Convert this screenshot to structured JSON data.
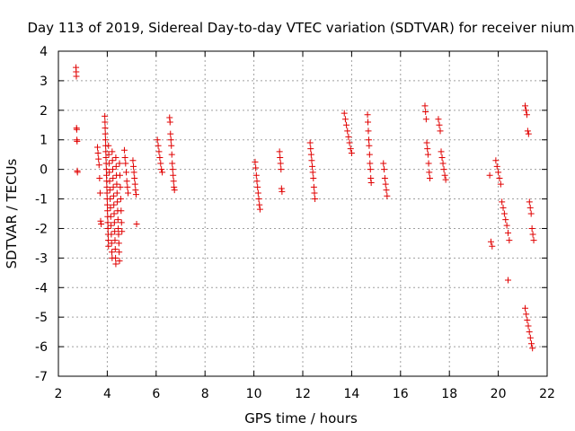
{
  "chart_data": {
    "type": "scatter",
    "title": "Day 113 of 2019, Sidereal Day-to-day VTEC variation (SDTVAR) for receiver nium",
    "xlabel": "GPS time / hours",
    "ylabel": "SDTVAR / TECUs",
    "xlim": [
      2,
      22
    ],
    "ylim": [
      -7,
      4
    ],
    "xticks": [
      2,
      4,
      6,
      8,
      10,
      12,
      14,
      16,
      18,
      20,
      22
    ],
    "yticks": [
      -7,
      -6,
      -5,
      -4,
      -3,
      -2,
      -1,
      0,
      1,
      2,
      3,
      4
    ],
    "grid": true,
    "marker": "plus",
    "color": "#e00000",
    "series": [
      {
        "name": "SDTVAR",
        "segments": [
          {
            "x0": 2.72,
            "x1": 2.78,
            "y": [
              3.45,
              3.3,
              3.15,
              1.4,
              1.35,
              1.0,
              0.95,
              -0.05,
              -0.1
            ]
          },
          {
            "x0": 3.6,
            "x1": 3.75,
            "y": [
              0.75,
              0.55,
              0.35,
              0.15,
              -0.3,
              -0.8,
              -1.75,
              -1.85
            ]
          },
          {
            "x0": 3.9,
            "x1": 4.05,
            "y": [
              1.8,
              1.6,
              1.4,
              1.2,
              1.0,
              0.8,
              0.6,
              0.4,
              0.2,
              0.0,
              -0.2,
              -0.4,
              -0.6,
              -0.8,
              -1.0,
              -1.2,
              -1.4,
              -1.6,
              -1.8,
              -2.0,
              -2.2,
              -2.4,
              -2.6
            ]
          },
          {
            "x0": 4.05,
            "x1": 4.2,
            "y": [
              0.8,
              0.5,
              0.2,
              -0.1,
              -0.4,
              -0.7,
              -1.0,
              -1.3,
              -1.6,
              -1.9,
              -2.2,
              -2.5,
              -2.8,
              -3.0
            ]
          },
          {
            "x0": 4.2,
            "x1": 4.35,
            "y": [
              0.6,
              0.3,
              0.0,
              -0.3,
              -0.6,
              -0.9,
              -1.2,
              -1.5,
              -1.8,
              -2.1,
              -2.4,
              -2.7,
              -3.0,
              -3.2
            ]
          },
          {
            "x0": 4.35,
            "x1": 4.5,
            "y": [
              0.4,
              0.1,
              -0.2,
              -0.5,
              -0.8,
              -1.1,
              -1.4,
              -1.7,
              -2.0,
              -2.2,
              -2.5,
              -2.8,
              -3.1
            ]
          },
          {
            "x0": 4.5,
            "x1": 4.6,
            "y": [
              0.2,
              -0.2,
              -0.6,
              -1.0,
              -1.4,
              -1.8,
              -2.1
            ]
          },
          {
            "x0": 4.7,
            "x1": 4.85,
            "y": [
              0.65,
              0.4,
              0.2,
              -0.1,
              -0.4,
              -0.6,
              -0.8
            ]
          },
          {
            "x0": 5.05,
            "x1": 5.2,
            "y": [
              0.3,
              0.1,
              -0.1,
              -0.3,
              -0.5,
              -0.7,
              -0.85,
              -1.85
            ]
          },
          {
            "x0": 6.05,
            "x1": 6.25,
            "y": [
              1.0,
              0.8,
              0.6,
              0.4,
              0.2,
              0.0,
              -0.1
            ]
          },
          {
            "x0": 6.55,
            "x1": 6.75,
            "y": [
              1.75,
              1.6,
              1.2,
              1.0,
              0.8,
              0.5,
              0.2,
              0.0,
              -0.2,
              -0.4,
              -0.6,
              -0.7
            ]
          },
          {
            "x0": 10.05,
            "x1": 10.25,
            "y": [
              0.25,
              0.05,
              -0.2,
              -0.4,
              -0.6,
              -0.8,
              -1.0,
              -1.2,
              -1.35
            ]
          },
          {
            "x0": 11.05,
            "x1": 11.15,
            "y": [
              0.6,
              0.4,
              0.2,
              0.0,
              -0.65,
              -0.75
            ]
          },
          {
            "x0": 12.3,
            "x1": 12.5,
            "y": [
              0.9,
              0.7,
              0.5,
              0.3,
              0.1,
              -0.1,
              -0.3,
              -0.6,
              -0.8,
              -1.0
            ]
          },
          {
            "x0": 13.7,
            "x1": 14.0,
            "y": [
              1.9,
              1.7,
              1.5,
              1.3,
              1.1,
              0.9,
              0.7,
              0.55
            ]
          },
          {
            "x0": 14.65,
            "x1": 14.8,
            "y": [
              1.85,
              1.6,
              1.3,
              1.0,
              0.8,
              0.5,
              0.2,
              0.0,
              -0.3,
              -0.45
            ]
          },
          {
            "x0": 15.3,
            "x1": 15.45,
            "y": [
              0.2,
              0.0,
              -0.3,
              -0.5,
              -0.7,
              -0.9
            ]
          },
          {
            "x0": 17.0,
            "x1": 17.2,
            "y": [
              2.15,
              1.95,
              1.7,
              0.9,
              0.7,
              0.5,
              0.2,
              -0.1,
              -0.3
            ]
          },
          {
            "x0": 17.55,
            "x1": 17.85,
            "y": [
              1.7,
              1.5,
              1.3,
              0.6,
              0.4,
              0.2,
              0.0,
              -0.2,
              -0.35
            ]
          },
          {
            "x0": 19.65,
            "x1": 19.75,
            "y": [
              -0.2,
              -2.45,
              -2.6
            ]
          },
          {
            "x0": 19.9,
            "x1": 20.45,
            "y": [
              0.3,
              0.1,
              -0.1,
              -0.3,
              -0.5,
              -1.1,
              -1.3,
              -1.5,
              -1.7,
              -1.9,
              -2.15,
              -2.4
            ]
          },
          {
            "x0": 20.4,
            "x1": 20.45,
            "y": [
              -3.75
            ]
          },
          {
            "x0": 21.1,
            "x1": 21.45,
            "y": [
              2.15,
              2.0,
              1.85,
              1.3,
              1.2,
              -1.1,
              -1.3,
              -1.5,
              -2.0,
              -2.2,
              -2.4
            ]
          },
          {
            "x0": 21.1,
            "x1": 21.4,
            "y": [
              -4.7,
              -4.9,
              -5.1,
              -5.3,
              -5.5,
              -5.7,
              -5.9,
              -6.05
            ]
          }
        ]
      }
    ]
  }
}
